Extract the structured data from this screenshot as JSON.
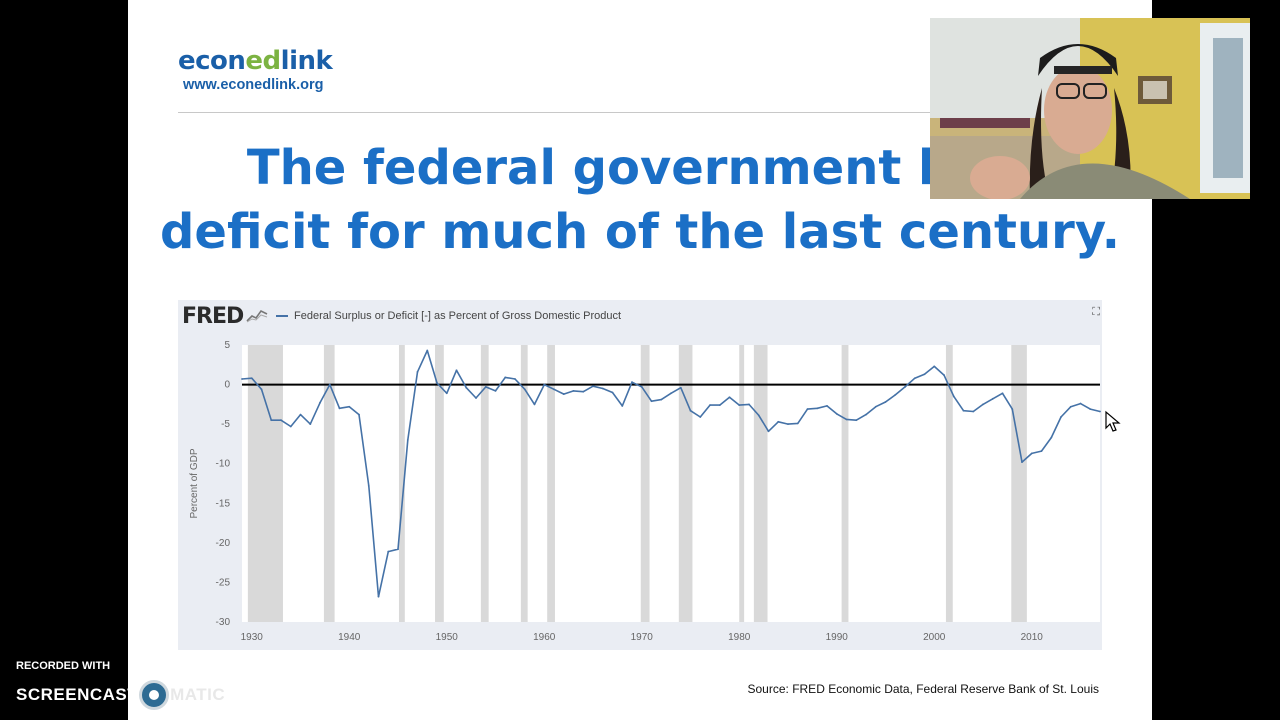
{
  "logo": {
    "name_part1": "econ",
    "name_part2": "ed",
    "name_part3": "link",
    "url": "www.econedlink.org"
  },
  "title": {
    "line1": "The federal government has",
    "line2": "deficit for much of the last century."
  },
  "source": "Source: FRED Economic Data, Federal Reserve Bank of St. Louis",
  "overlay": {
    "recorded_with": "RECORDED WITH",
    "screencast_left": "SCREENCAST",
    "screencast_right": "MATIC"
  },
  "colors": {
    "title": "#1b6fc6",
    "series": "#4572a7",
    "recession": "#d9d9d9",
    "plot_bg": "#ffffff",
    "frame_bg": "#eaedf3"
  },
  "icons": {
    "fred_chart_icon": "fred-sparkline-icon",
    "expand_icon": "expand-icon",
    "cursor": "mouse-cursor-icon"
  },
  "chart_data": {
    "type": "line",
    "source_logo": "FRED",
    "title": "",
    "legend": "Federal Surplus or Deficit [-] as Percent of Gross Domestic Product",
    "legend_position": "top-left",
    "ylabel": "Percent of GDP",
    "xlabel": "",
    "xlim": [
      1929,
      2017
    ],
    "ylim": [
      -30,
      5
    ],
    "x_ticks": [
      1930,
      1940,
      1950,
      1960,
      1970,
      1980,
      1990,
      2000,
      2010
    ],
    "y_ticks": [
      5,
      0,
      -5,
      -10,
      -15,
      -20,
      -25,
      -30
    ],
    "zero_line": true,
    "recession_bands": [
      [
        1929.6,
        1933.2
      ],
      [
        1937.4,
        1938.5
      ],
      [
        1945.1,
        1945.7
      ],
      [
        1948.8,
        1949.7
      ],
      [
        1953.5,
        1954.3
      ],
      [
        1957.6,
        1958.3
      ],
      [
        1960.3,
        1961.1
      ],
      [
        1969.9,
        1970.8
      ],
      [
        1973.8,
        1975.2
      ],
      [
        1980.0,
        1980.5
      ],
      [
        1981.5,
        1982.9
      ],
      [
        1990.5,
        1991.2
      ],
      [
        2001.2,
        2001.9
      ],
      [
        2007.9,
        2009.5
      ]
    ],
    "series": [
      {
        "x": [
          1929,
          1930,
          1931,
          1932,
          1933,
          1934,
          1935,
          1936,
          1937,
          1938,
          1939,
          1940,
          1941,
          1942,
          1943,
          1944,
          1945,
          1946,
          1947,
          1948,
          1949,
          1950,
          1951,
          1952,
          1953,
          1954,
          1955,
          1956,
          1957,
          1958,
          1959,
          1960,
          1961,
          1962,
          1963,
          1964,
          1965,
          1966,
          1967,
          1968,
          1969,
          1970,
          1971,
          1972,
          1973,
          1974,
          1975,
          1976,
          1977,
          1978,
          1979,
          1980,
          1981,
          1982,
          1983,
          1984,
          1985,
          1986,
          1987,
          1988,
          1989,
          1990,
          1991,
          1992,
          1993,
          1994,
          1995,
          1996,
          1997,
          1998,
          1999,
          2000,
          2001,
          2002,
          2003,
          2004,
          2005,
          2006,
          2007,
          2008,
          2009,
          2010,
          2011,
          2012,
          2013,
          2014,
          2015,
          2016,
          2017
        ],
        "values": [
          0.7,
          0.8,
          -0.6,
          -4.5,
          -4.5,
          -5.3,
          -3.8,
          -5.0,
          -2.3,
          0.0,
          -3.0,
          -2.8,
          -3.8,
          -12.8,
          -26.8,
          -21.1,
          -20.8,
          -7.0,
          1.6,
          4.3,
          0.2,
          -1.1,
          1.8,
          -0.4,
          -1.7,
          -0.3,
          -0.8,
          0.9,
          0.7,
          -0.6,
          -2.5,
          0.0,
          -0.6,
          -1.2,
          -0.8,
          -0.9,
          -0.2,
          -0.5,
          -1.0,
          -2.7,
          0.3,
          -0.3,
          -2.1,
          -1.9,
          -1.1,
          -0.4,
          -3.3,
          -4.1,
          -2.6,
          -2.6,
          -1.6,
          -2.6,
          -2.5,
          -3.9,
          -5.9,
          -4.7,
          -5.0,
          -4.9,
          -3.1,
          -3.0,
          -2.7,
          -3.7,
          -4.4,
          -4.5,
          -3.8,
          -2.8,
          -2.2,
          -1.3,
          -0.3,
          0.8,
          1.3,
          2.3,
          1.2,
          -1.5,
          -3.3,
          -3.4,
          -2.5,
          -1.8,
          -1.1,
          -3.1,
          -9.8,
          -8.7,
          -8.4,
          -6.7,
          -4.1,
          -2.8,
          -2.4,
          -3.1,
          -3.4
        ]
      }
    ]
  }
}
